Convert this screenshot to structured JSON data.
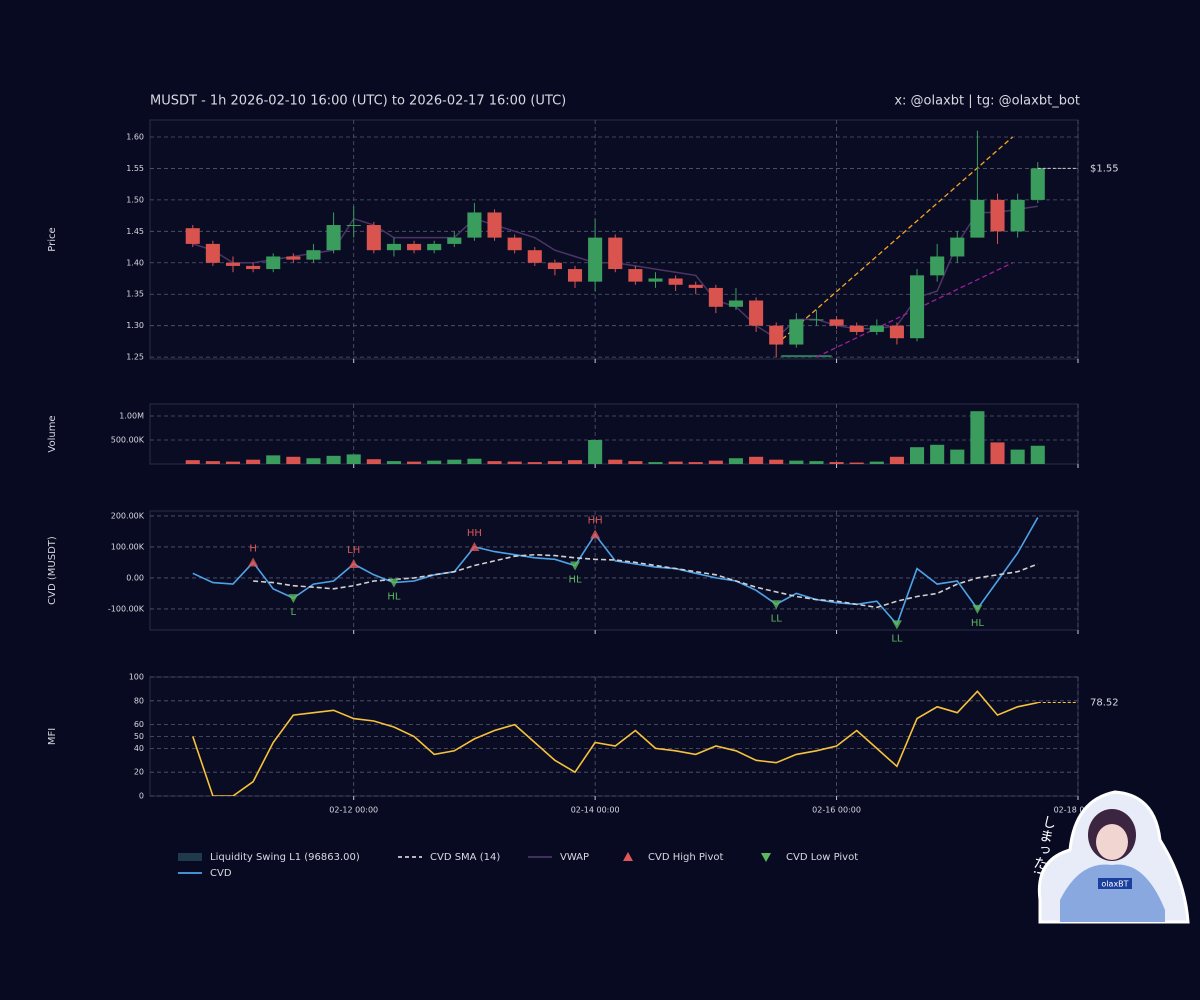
{
  "header": {
    "title": "MUSDT - 1h 2026-02-10 16:00 (UTC) to 2026-02-17 16:00 (UTC)",
    "credit": "x: @olaxbt | tg: @olaxbt_bot"
  },
  "sticker": {
    "caption": "しまった!",
    "badge": "olaxBT"
  },
  "x": [
    "2026-02-10 16:00",
    "2026-02-10 20:00",
    "2026-02-11 00:00",
    "2026-02-11 04:00",
    "2026-02-11 08:00",
    "2026-02-11 12:00",
    "2026-02-11 16:00",
    "2026-02-11 20:00",
    "2026-02-12 00:00",
    "2026-02-12 04:00",
    "2026-02-12 08:00",
    "2026-02-12 12:00",
    "2026-02-12 16:00",
    "2026-02-12 20:00",
    "2026-02-13 00:00",
    "2026-02-13 04:00",
    "2026-02-13 08:00",
    "2026-02-13 12:00",
    "2026-02-13 16:00",
    "2026-02-13 20:00",
    "2026-02-14 00:00",
    "2026-02-14 04:00",
    "2026-02-14 08:00",
    "2026-02-14 12:00",
    "2026-02-14 16:00",
    "2026-02-14 20:00",
    "2026-02-15 00:00",
    "2026-02-15 04:00",
    "2026-02-15 08:00",
    "2026-02-15 12:00",
    "2026-02-15 16:00",
    "2026-02-15 20:00",
    "2026-02-16 00:00",
    "2026-02-16 04:00",
    "2026-02-16 08:00",
    "2026-02-16 12:00",
    "2026-02-16 16:00",
    "2026-02-16 20:00",
    "2026-02-17 00:00",
    "2026-02-17 04:00",
    "2026-02-17 08:00",
    "2026-02-17 12:00",
    "2026-02-17 16:00"
  ],
  "xlim": [
    "2026-02-10 07:30",
    "2026-02-18 00:00"
  ],
  "xticks": [
    {
      "value": "2026-02-12 00:00",
      "label": "02-12 00:00"
    },
    {
      "value": "2026-02-14 00:00",
      "label": "02-14 00:00"
    },
    {
      "value": "2026-02-16 00:00",
      "label": "02-16 00:00"
    },
    {
      "value": "2026-02-18 00:00",
      "label": "02-18 00:00"
    }
  ],
  "chart_data": [
    {
      "type": "candlestick",
      "ylabel": "Price",
      "up_color": "#3a9d5d",
      "down_color": "#d9534f",
      "open": [
        1.455,
        1.43,
        1.4,
        1.395,
        1.39,
        1.41,
        1.405,
        1.42,
        1.46,
        1.46,
        1.42,
        1.43,
        1.42,
        1.43,
        1.44,
        1.48,
        1.44,
        1.42,
        1.4,
        1.39,
        1.37,
        1.44,
        1.39,
        1.37,
        1.375,
        1.365,
        1.36,
        1.33,
        1.34,
        1.3,
        1.27,
        1.31,
        1.31,
        1.3,
        1.29,
        1.3,
        1.28,
        1.38,
        1.41,
        1.44,
        1.5,
        1.45,
        1.5
      ],
      "high": [
        1.46,
        1.435,
        1.41,
        1.4,
        1.415,
        1.415,
        1.43,
        1.48,
        1.49,
        1.465,
        1.44,
        1.435,
        1.435,
        1.45,
        1.495,
        1.485,
        1.445,
        1.425,
        1.405,
        1.395,
        1.47,
        1.445,
        1.395,
        1.385,
        1.38,
        1.37,
        1.365,
        1.36,
        1.345,
        1.305,
        1.32,
        1.325,
        1.315,
        1.305,
        1.31,
        1.305,
        1.39,
        1.43,
        1.45,
        1.61,
        1.51,
        1.51,
        1.56
      ],
      "low": [
        1.425,
        1.395,
        1.385,
        1.385,
        1.385,
        1.4,
        1.4,
        1.415,
        1.44,
        1.415,
        1.41,
        1.415,
        1.415,
        1.425,
        1.435,
        1.435,
        1.415,
        1.395,
        1.38,
        1.36,
        1.355,
        1.385,
        1.365,
        1.36,
        1.355,
        1.35,
        1.32,
        1.325,
        1.29,
        1.25,
        1.265,
        1.3,
        1.295,
        1.285,
        1.285,
        1.27,
        1.275,
        1.37,
        1.4,
        1.44,
        1.43,
        1.44,
        1.495
      ],
      "close": [
        1.43,
        1.4,
        1.395,
        1.39,
        1.41,
        1.405,
        1.42,
        1.46,
        1.46,
        1.42,
        1.43,
        1.42,
        1.43,
        1.44,
        1.48,
        1.44,
        1.42,
        1.4,
        1.39,
        1.37,
        1.44,
        1.39,
        1.37,
        1.375,
        1.365,
        1.36,
        1.33,
        1.34,
        1.3,
        1.27,
        1.31,
        1.31,
        1.3,
        1.29,
        1.3,
        1.28,
        1.38,
        1.41,
        1.44,
        1.5,
        1.45,
        1.5,
        1.55
      ],
      "last_label": "$1.55",
      "vwap": {
        "name": "VWAP",
        "color": "#4a3566",
        "values": [
          1.43,
          1.42,
          1.4,
          1.4,
          1.405,
          1.41,
          1.415,
          1.42,
          1.47,
          1.46,
          1.44,
          1.44,
          1.44,
          1.44,
          1.47,
          1.46,
          1.45,
          1.44,
          1.42,
          1.41,
          1.4,
          1.4,
          1.395,
          1.39,
          1.385,
          1.38,
          1.34,
          1.33,
          1.3,
          1.28,
          1.31,
          1.31,
          1.3,
          1.295,
          1.295,
          1.3,
          1.345,
          1.355,
          1.43,
          1.48,
          1.48,
          1.485,
          1.49
        ]
      },
      "trendlines": [
        {
          "color": "#f5a623",
          "x": [
            "2026-02-15 12:00",
            "2026-02-17 11:00"
          ],
          "values": [
            1.27,
            1.6
          ]
        },
        {
          "color": "#9b1f9b",
          "x": [
            "2026-02-15 20:00",
            "2026-02-17 11:00"
          ],
          "values": [
            1.25,
            1.4
          ]
        }
      ],
      "liquidity_zone": {
        "name": "Liquidity Swing L1 (96863.00)",
        "color": "#2e7d5b",
        "x": [
          "2026-02-15 13:00",
          "2026-02-15 23:00"
        ],
        "value": 1.25
      },
      "ylim": [
        1.247,
        1.627
      ],
      "yticks": [
        1.25,
        {
          "value": 1.3,
          "label": "1.30"
        },
        1.35,
        {
          "value": 1.4,
          "label": "1.40"
        },
        1.45,
        {
          "value": 1.5,
          "label": "1.50"
        },
        1.55,
        {
          "value": 1.6,
          "label": "1.60"
        }
      ]
    },
    {
      "type": "bar",
      "ylabel": "Volume",
      "values": [
        80000,
        60000,
        50000,
        90000,
        180000,
        150000,
        120000,
        170000,
        200000,
        100000,
        60000,
        50000,
        70000,
        90000,
        110000,
        60000,
        50000,
        40000,
        60000,
        80000,
        500000,
        90000,
        60000,
        40000,
        50000,
        40000,
        70000,
        120000,
        150000,
        90000,
        70000,
        60000,
        40000,
        30000,
        50000,
        150000,
        350000,
        400000,
        300000,
        1100000,
        450000,
        300000,
        380000
      ],
      "ylim": [
        0,
        1250000
      ],
      "yticks": [
        {
          "value": 500000,
          "label": "500.00K"
        },
        {
          "value": 1000000,
          "label": "1.00M"
        }
      ]
    },
    {
      "type": "line",
      "ylabel": "CVD (MUSDT)",
      "series": [
        {
          "name": "CVD",
          "color": "#4ea3e8",
          "values": [
            15000,
            -15000,
            -20000,
            50000,
            -35000,
            -65000,
            -20000,
            -10000,
            45000,
            10000,
            -15000,
            -10000,
            10000,
            20000,
            100000,
            85000,
            75000,
            65000,
            60000,
            40000,
            140000,
            55000,
            45000,
            35000,
            30000,
            15000,
            0,
            -10000,
            -40000,
            -85000,
            -50000,
            -70000,
            -80000,
            -85000,
            -75000,
            -150000,
            30000,
            -20000,
            -10000,
            -100000,
            -10000,
            80000,
            195000
          ]
        },
        {
          "name": "CVD SMA (14)",
          "color": "#d0d0d0",
          "dash": true,
          "values": [
            null,
            null,
            null,
            -10000,
            -15000,
            -25000,
            -30000,
            -35000,
            -25000,
            -10000,
            -5000,
            0,
            10000,
            20000,
            40000,
            55000,
            70000,
            75000,
            72000,
            65000,
            60000,
            58000,
            50000,
            40000,
            30000,
            20000,
            10000,
            -10000,
            -30000,
            -45000,
            -60000,
            -70000,
            -75000,
            -85000,
            -95000,
            -75000,
            -60000,
            -50000,
            -20000,
            0,
            10000,
            20000,
            45000
          ]
        }
      ],
      "high_pivots": {
        "name": "CVD High Pivot",
        "color": "#e05757",
        "points": [
          {
            "x": "2026-02-11 04:00",
            "value": 50000,
            "label": "H"
          },
          {
            "x": "2026-02-12 00:00",
            "value": 45000,
            "label": "LH"
          },
          {
            "x": "2026-02-13 00:00",
            "value": 100000,
            "label": "HH"
          },
          {
            "x": "2026-02-14 00:00",
            "value": 140000,
            "label": "HH"
          }
        ]
      },
      "low_pivots": {
        "name": "CVD Low Pivot",
        "color": "#5cb85c",
        "points": [
          {
            "x": "2026-02-11 12:00",
            "value": -65000,
            "label": "L"
          },
          {
            "x": "2026-02-12 08:00",
            "value": -15000,
            "label": "HL"
          },
          {
            "x": "2026-02-13 20:00",
            "value": 40000,
            "label": "HL"
          },
          {
            "x": "2026-02-15 12:00",
            "value": -85000,
            "label": "LL"
          },
          {
            "x": "2026-02-16 12:00",
            "value": -150000,
            "label": "LL"
          },
          {
            "x": "2026-02-17 04:00",
            "value": -100000,
            "label": "HL"
          }
        ]
      },
      "ylim": [
        -168000,
        216000
      ],
      "yticks": [
        {
          "value": -100000,
          "label": "-100.00K"
        },
        {
          "value": 0,
          "label": "0.00"
        },
        {
          "value": 100000,
          "label": "100.00K"
        },
        {
          "value": 200000,
          "label": "200.00K"
        }
      ]
    },
    {
      "type": "line",
      "ylabel": "MFI",
      "last_label": "78.52",
      "series": [
        {
          "color": "#f7c23b",
          "values": [
            50,
            0,
            0,
            12,
            45,
            68,
            70,
            72,
            65,
            63,
            58,
            50,
            35,
            38,
            48,
            55,
            60,
            45,
            30,
            20,
            45,
            42,
            55,
            40,
            38,
            35,
            42,
            38,
            30,
            28,
            35,
            38,
            42,
            55,
            40,
            25,
            65,
            75,
            70,
            88,
            68,
            75,
            78.52
          ]
        }
      ],
      "ylim": [
        0,
        100
      ],
      "yticks": [
        0,
        20,
        40,
        50,
        60,
        80,
        100
      ]
    }
  ]
}
